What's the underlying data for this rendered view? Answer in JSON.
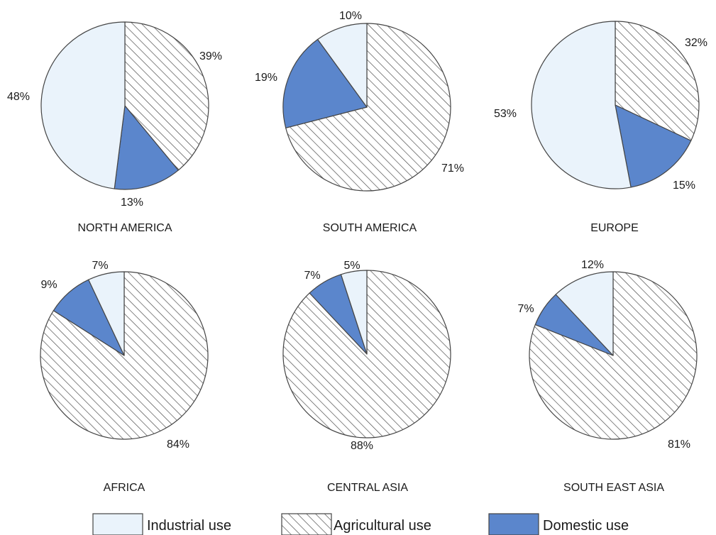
{
  "colors": {
    "industrial": "#eaf3fb",
    "agricultural_bg": "#ffffff",
    "agricultural_hatch": "#444444",
    "domestic": "#5b86cc",
    "stroke": "#444444"
  },
  "chart_data": {
    "type": "pie",
    "legend": [
      {
        "key": "industrial",
        "label": "Industrial use"
      },
      {
        "key": "agricultural",
        "label": "Agricultural use"
      },
      {
        "key": "domestic",
        "label": "Domestic use"
      }
    ],
    "legend_position": "bottom",
    "charts": [
      {
        "title": "NORTH AMERICA",
        "slices": [
          {
            "key": "agricultural",
            "value": 39,
            "label": "39%"
          },
          {
            "key": "domestic",
            "value": 13,
            "label": "13%"
          },
          {
            "key": "industrial",
            "value": 48,
            "label": "48%"
          }
        ]
      },
      {
        "title": "SOUTH AMERICA",
        "slices": [
          {
            "key": "agricultural",
            "value": 71,
            "label": "71%"
          },
          {
            "key": "domestic",
            "value": 19,
            "label": "19%"
          },
          {
            "key": "industrial",
            "value": 10,
            "label": "10%"
          }
        ]
      },
      {
        "title": "EUROPE",
        "slices": [
          {
            "key": "agricultural",
            "value": 32,
            "label": "32%"
          },
          {
            "key": "domestic",
            "value": 15,
            "label": "15%"
          },
          {
            "key": "industrial",
            "value": 53,
            "label": "53%"
          }
        ]
      },
      {
        "title": "AFRICA",
        "slices": [
          {
            "key": "agricultural",
            "value": 84,
            "label": "84%"
          },
          {
            "key": "domestic",
            "value": 9,
            "label": "9%"
          },
          {
            "key": "industrial",
            "value": 7,
            "label": "7%"
          }
        ]
      },
      {
        "title": "CENTRAL ASIA",
        "slices": [
          {
            "key": "agricultural",
            "value": 88,
            "label": "88%"
          },
          {
            "key": "domestic",
            "value": 7,
            "label": "7%"
          },
          {
            "key": "industrial",
            "value": 5,
            "label": "5%"
          }
        ]
      },
      {
        "title": "SOUTH EAST ASIA",
        "slices": [
          {
            "key": "agricultural",
            "value": 81,
            "label": "81%"
          },
          {
            "key": "domestic",
            "value": 7,
            "label": "7%"
          },
          {
            "key": "industrial",
            "value": 12,
            "label": "12%"
          }
        ]
      }
    ]
  }
}
